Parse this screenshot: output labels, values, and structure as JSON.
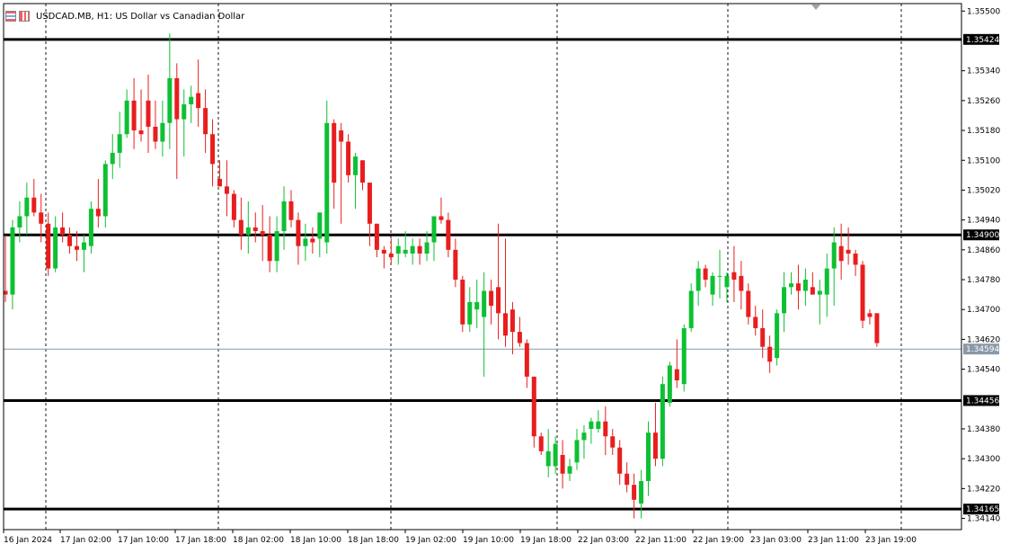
{
  "header": {
    "symbol": "USDCAD.MB",
    "timeframe": "H1",
    "description": "US Dollar vs Canadian Dollar",
    "title_text": "USDCAD.MB, H1:  US Dollar vs Canadian Dollar"
  },
  "chart_data": {
    "type": "candlestick",
    "ylim": [
      1.3411,
      1.3552
    ],
    "price_ticks": [
      "1.35500",
      "1.35340",
      "1.35260",
      "1.35180",
      "1.35100",
      "1.35020",
      "1.34940",
      "1.34860",
      "1.34780",
      "1.34700",
      "1.34620",
      "1.34540",
      "1.34380",
      "1.34300",
      "1.34220",
      "1.34140"
    ],
    "time_labels": [
      "16 Jan 2024",
      "17 Jan 02:00",
      "17 Jan 10:00",
      "17 Jan 18:00",
      "18 Jan 02:00",
      "18 Jan 10:00",
      "18 Jan 18:00",
      "19 Jan 02:00",
      "19 Jan 10:00",
      "19 Jan 18:00",
      "22 Jan 03:00",
      "22 Jan 11:00",
      "22 Jan 19:00",
      "23 Jan 03:00",
      "23 Jan 11:00",
      "23 Jan 19:00"
    ],
    "horizontal_levels": [
      {
        "price": 1.35424,
        "label": "1.35424"
      },
      {
        "price": 1.349,
        "label": "1.34900"
      },
      {
        "price": 1.34456,
        "label": "1.34456"
      },
      {
        "price": 1.34165,
        "label": "1.34165"
      }
    ],
    "current_price": {
      "price": 1.34594,
      "label": "1.34594"
    },
    "colors": {
      "bull": "#0ec033",
      "bear": "#e81e1e",
      "level": "#000000",
      "current": "#8899a8",
      "grid": "#000000"
    },
    "candles": [
      [
        1.3475,
        1.349,
        1.3472,
        1.3474
      ],
      [
        1.3474,
        1.3494,
        1.347,
        1.3492
      ],
      [
        1.3492,
        1.3499,
        1.3488,
        1.3495
      ],
      [
        1.3495,
        1.3504,
        1.349,
        1.35
      ],
      [
        1.35,
        1.3505,
        1.3495,
        1.3496
      ],
      [
        1.3496,
        1.3501,
        1.3488,
        1.3493
      ],
      [
        1.3493,
        1.3496,
        1.3479,
        1.3481
      ],
      [
        1.3481,
        1.3495,
        1.348,
        1.3492
      ],
      [
        1.3492,
        1.3496,
        1.3488,
        1.349
      ],
      [
        1.349,
        1.3492,
        1.3485,
        1.3487
      ],
      [
        1.3487,
        1.3491,
        1.3483,
        1.3486
      ],
      [
        1.3486,
        1.349,
        1.348,
        1.3488
      ],
      [
        1.3487,
        1.3499,
        1.3485,
        1.3497
      ],
      [
        1.3497,
        1.3505,
        1.3492,
        1.3495
      ],
      [
        1.3495,
        1.351,
        1.3492,
        1.3509
      ],
      [
        1.3509,
        1.3517,
        1.3505,
        1.3512
      ],
      [
        1.3512,
        1.3523,
        1.3508,
        1.3517
      ],
      [
        1.3517,
        1.3529,
        1.3516,
        1.3526
      ],
      [
        1.3526,
        1.3532,
        1.3513,
        1.3518
      ],
      [
        1.3518,
        1.3529,
        1.3515,
        1.3517
      ],
      [
        1.3526,
        1.3533,
        1.3512,
        1.3519
      ],
      [
        1.3519,
        1.3526,
        1.3513,
        1.3515
      ],
      [
        1.3515,
        1.3526,
        1.3511,
        1.352
      ],
      [
        1.352,
        1.3544,
        1.3513,
        1.3532
      ],
      [
        1.3532,
        1.3536,
        1.3505,
        1.3521
      ],
      [
        1.3521,
        1.3529,
        1.3511,
        1.3525
      ],
      [
        1.3525,
        1.353,
        1.352,
        1.3527
      ],
      [
        1.3528,
        1.3537,
        1.3519,
        1.3524
      ],
      [
        1.3524,
        1.3529,
        1.3512,
        1.3517
      ],
      [
        1.3517,
        1.3521,
        1.3503,
        1.3509
      ],
      [
        1.3505,
        1.351,
        1.3503,
        1.3503
      ],
      [
        1.3503,
        1.351,
        1.3495,
        1.3501
      ],
      [
        1.3501,
        1.3502,
        1.3492,
        1.3494
      ],
      [
        1.3494,
        1.35,
        1.3486,
        1.349
      ],
      [
        1.349,
        1.3499,
        1.3485,
        1.3492
      ],
      [
        1.3492,
        1.3496,
        1.3488,
        1.3491
      ],
      [
        1.3491,
        1.3498,
        1.3483,
        1.349
      ],
      [
        1.349,
        1.3495,
        1.348,
        1.3483
      ],
      [
        1.3483,
        1.3495,
        1.348,
        1.3491
      ],
      [
        1.3491,
        1.3503,
        1.3486,
        1.3499
      ],
      [
        1.3499,
        1.3502,
        1.3492,
        1.3494
      ],
      [
        1.3494,
        1.3496,
        1.3482,
        1.3487
      ],
      [
        1.3487,
        1.3493,
        1.3483,
        1.3489
      ],
      [
        1.3489,
        1.3492,
        1.3485,
        1.3488
      ],
      [
        1.3489,
        1.3496,
        1.3484,
        1.3496
      ],
      [
        1.3488,
        1.3526,
        1.3485,
        1.352
      ],
      [
        1.352,
        1.3521,
        1.3497,
        1.3504
      ],
      [
        1.3518,
        1.352,
        1.3493,
        1.3515
      ],
      [
        1.3515,
        1.3517,
        1.3504,
        1.3506
      ],
      [
        1.3506,
        1.3512,
        1.3497,
        1.3511
      ],
      [
        1.351,
        1.351,
        1.3502,
        1.3504
      ],
      [
        1.3504,
        1.3504,
        1.3487,
        1.3493
      ],
      [
        1.3493,
        1.3493,
        1.3484,
        1.3486
      ],
      [
        1.3486,
        1.3487,
        1.3481,
        1.3485
      ],
      [
        1.3485,
        1.3489,
        1.3482,
        1.3484
      ],
      [
        1.3485,
        1.3489,
        1.3482,
        1.3487
      ],
      [
        1.3485,
        1.3491,
        1.3484,
        1.3486
      ],
      [
        1.3485,
        1.3489,
        1.3482,
        1.3487
      ],
      [
        1.3487,
        1.3489,
        1.3482,
        1.3485
      ],
      [
        1.3485,
        1.3491,
        1.3483,
        1.3488
      ],
      [
        1.3488,
        1.3494,
        1.3483,
        1.3495
      ],
      [
        1.3495,
        1.35,
        1.3493,
        1.3494
      ],
      [
        1.3494,
        1.3496,
        1.3484,
        1.3486
      ],
      [
        1.3486,
        1.3489,
        1.3476,
        1.3478
      ],
      [
        1.3478,
        1.3479,
        1.3464,
        1.3466
      ],
      [
        1.3466,
        1.3476,
        1.3464,
        1.3472
      ],
      [
        1.347,
        1.3478,
        1.3465,
        1.3472
      ],
      [
        1.3468,
        1.348,
        1.3452,
        1.3475
      ],
      [
        1.3475,
        1.3478,
        1.3466,
        1.3471
      ],
      [
        1.3476,
        1.3493,
        1.3462,
        1.3469
      ],
      [
        1.3469,
        1.3489,
        1.346,
        1.3463
      ],
      [
        1.347,
        1.3472,
        1.3458,
        1.3464
      ],
      [
        1.3464,
        1.3468,
        1.346,
        1.3461
      ],
      [
        1.3461,
        1.3462,
        1.3449,
        1.3452
      ],
      [
        1.3452,
        1.3452,
        1.3433,
        1.3436
      ],
      [
        1.3436,
        1.3437,
        1.3431,
        1.3432
      ],
      [
        1.3428,
        1.3438,
        1.3425,
        1.3432
      ],
      [
        1.3428,
        1.3436,
        1.3426,
        1.3434
      ],
      [
        1.3431,
        1.3435,
        1.3422,
        1.3426
      ],
      [
        1.3426,
        1.343,
        1.3424,
        1.3428
      ],
      [
        1.3429,
        1.3438,
        1.3427,
        1.3435
      ],
      [
        1.3435,
        1.3439,
        1.343,
        1.3437
      ],
      [
        1.3438,
        1.3441,
        1.3434,
        1.344
      ],
      [
        1.3438,
        1.3443,
        1.3437,
        1.344
      ],
      [
        1.344,
        1.3444,
        1.3431,
        1.3436
      ],
      [
        1.3436,
        1.3438,
        1.3431,
        1.3433
      ],
      [
        1.3433,
        1.3435,
        1.3423,
        1.3426
      ],
      [
        1.3426,
        1.3429,
        1.3421,
        1.3423
      ],
      [
        1.3423,
        1.3426,
        1.3414,
        1.3419
      ],
      [
        1.3418,
        1.3427,
        1.3414,
        1.3424
      ],
      [
        1.3424,
        1.344,
        1.342,
        1.3437
      ],
      [
        1.3437,
        1.3445,
        1.3428,
        1.343
      ],
      [
        1.343,
        1.3452,
        1.3428,
        1.345
      ],
      [
        1.3445,
        1.3456,
        1.3444,
        1.3455
      ],
      [
        1.3454,
        1.3462,
        1.3449,
        1.3451
      ],
      [
        1.345,
        1.3466,
        1.3448,
        1.3465
      ],
      [
        1.3465,
        1.3477,
        1.3464,
        1.3475
      ],
      [
        1.3475,
        1.3483,
        1.3471,
        1.3481
      ],
      [
        1.3481,
        1.3482,
        1.3476,
        1.3478
      ],
      [
        1.3474,
        1.348,
        1.3471,
        1.3479
      ],
      [
        1.3479,
        1.3486,
        1.3473,
        1.3479
      ],
      [
        1.3476,
        1.348,
        1.3472,
        1.3479
      ],
      [
        1.348,
        1.3487,
        1.3472,
        1.3478
      ],
      [
        1.3479,
        1.3483,
        1.347,
        1.3475
      ],
      [
        1.3475,
        1.3477,
        1.3466,
        1.3468
      ],
      [
        1.3468,
        1.3471,
        1.3463,
        1.3465
      ],
      [
        1.3465,
        1.347,
        1.3457,
        1.346
      ],
      [
        1.346,
        1.3463,
        1.3453,
        1.3456
      ],
      [
        1.3457,
        1.347,
        1.3455,
        1.3469
      ],
      [
        1.3469,
        1.348,
        1.3464,
        1.3476
      ],
      [
        1.3476,
        1.348,
        1.3474,
        1.3477
      ],
      [
        1.3477,
        1.3482,
        1.347,
        1.3475
      ],
      [
        1.3475,
        1.3481,
        1.3471,
        1.3478
      ],
      [
        1.3476,
        1.348,
        1.3474,
        1.3474
      ],
      [
        1.3474,
        1.3478,
        1.3466,
        1.3475
      ],
      [
        1.3474,
        1.3485,
        1.3468,
        1.3481
      ],
      [
        1.3481,
        1.3492,
        1.3471,
        1.3488
      ],
      [
        1.3487,
        1.3493,
        1.3478,
        1.3483
      ],
      [
        1.3486,
        1.3492,
        1.3482,
        1.3485
      ],
      [
        1.3485,
        1.3486,
        1.3479,
        1.3482
      ],
      [
        1.3482,
        1.3483,
        1.3465,
        1.3467
      ],
      [
        1.3469,
        1.347,
        1.3466,
        1.3468
      ],
      [
        1.3469,
        1.3469,
        1.346,
        1.3461
      ]
    ]
  }
}
